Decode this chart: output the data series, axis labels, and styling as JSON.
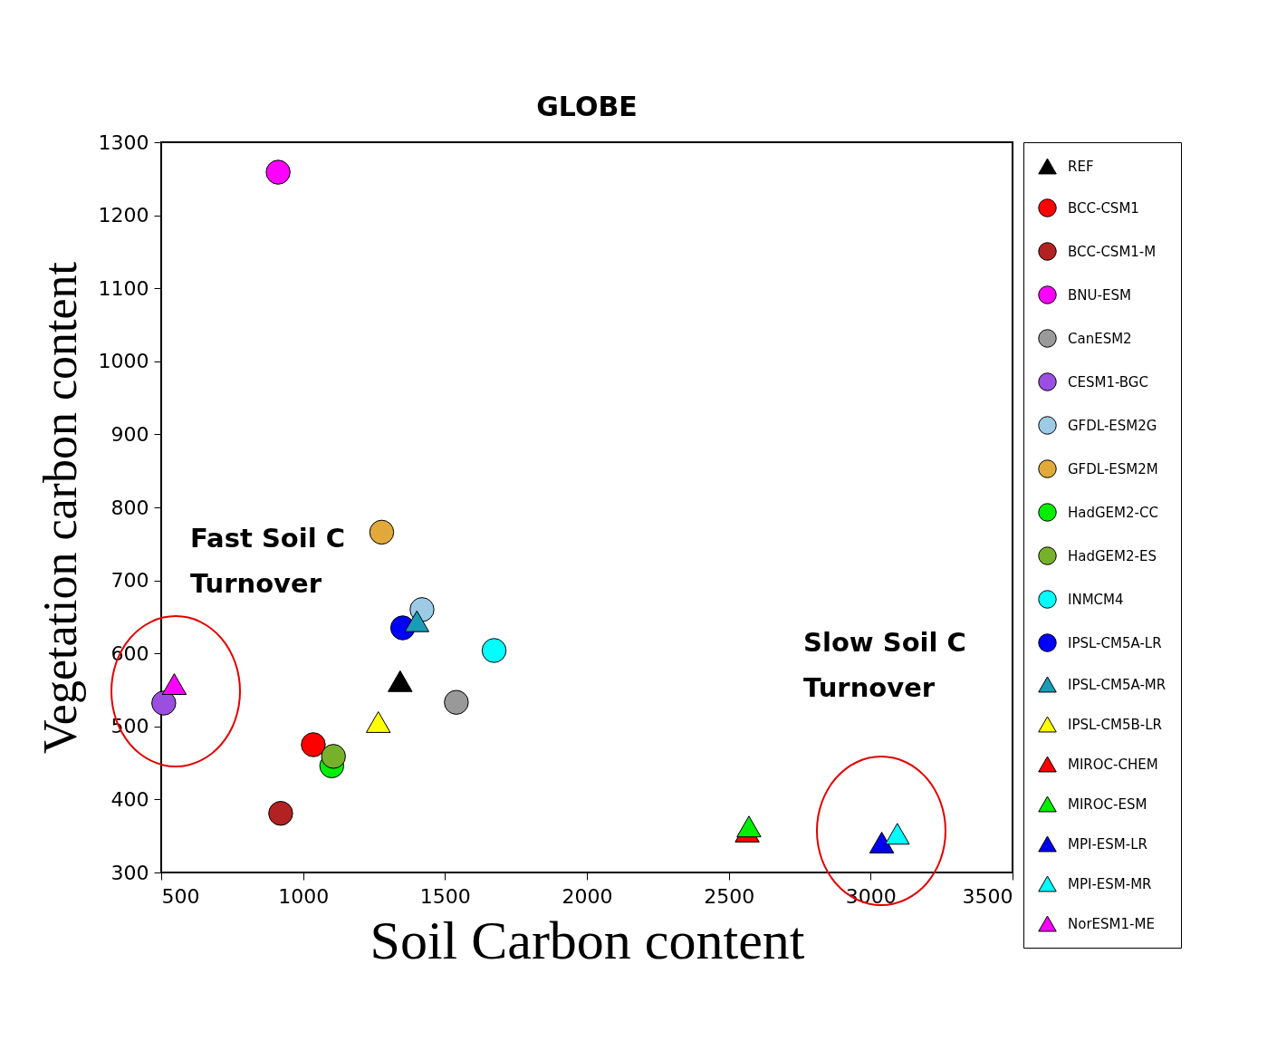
{
  "chart_data": {
    "type": "scatter",
    "title": "GLOBE",
    "xlabel": "Soil Carbon content",
    "ylabel": "Vegetation carbon content",
    "xlim": [
      500,
      3500
    ],
    "xticks": [
      500,
      1000,
      1500,
      2000,
      2500,
      3000,
      3500
    ],
    "ylim": [
      300,
      1300
    ],
    "yticks": [
      300,
      400,
      500,
      600,
      700,
      800,
      900,
      1000,
      1100,
      1200,
      1300
    ],
    "grid": false,
    "legend": "right",
    "annotations": [
      "Fast Soil C Turnover",
      "Slow Soil C Turnover"
    ],
    "series": [
      {
        "name": "REF",
        "color": "#000000",
        "marker": "triangle",
        "x": [
          1342
        ],
        "values": [
          562
        ]
      },
      {
        "name": "BCC-CSM1",
        "color": "#ff0000",
        "marker": "circle",
        "x": [
          1036
        ],
        "values": [
          475
        ]
      },
      {
        "name": "BCC-CSM1-M",
        "color": "#b22222",
        "marker": "circle",
        "x": [
          921
        ],
        "values": [
          381
        ]
      },
      {
        "name": "BNU-ESM",
        "color": "#ff00ff",
        "marker": "circle",
        "x": [
          912
        ],
        "values": [
          1259
        ]
      },
      {
        "name": "CanESM2",
        "color": "#999999",
        "marker": "circle",
        "x": [
          1540
        ],
        "values": [
          533
        ]
      },
      {
        "name": "CESM1-BGC",
        "color": "#9b4fe0",
        "marker": "circle",
        "x": [
          509
        ],
        "values": [
          532
        ]
      },
      {
        "name": "GFDL-ESM2G",
        "color": "#9dcbe6",
        "marker": "circle",
        "x": [
          1419
        ],
        "values": [
          660
        ]
      },
      {
        "name": "GFDL-ESM2M",
        "color": "#e0a93a",
        "marker": "circle",
        "x": [
          1277
        ],
        "values": [
          766
        ]
      },
      {
        "name": "HadGEM2-CC",
        "color": "#00ee00",
        "marker": "circle",
        "x": [
          1101
        ],
        "values": [
          446
        ]
      },
      {
        "name": "HadGEM2-ES",
        "color": "#77b02a",
        "marker": "circle",
        "x": [
          1107
        ],
        "values": [
          459
        ]
      },
      {
        "name": "INMCM4",
        "color": "#00ffff",
        "marker": "circle",
        "x": [
          1673
        ],
        "values": [
          604
        ]
      },
      {
        "name": "IPSL-CM5A-LR",
        "color": "#0000ff",
        "marker": "circle",
        "x": [
          1351
        ],
        "values": [
          635
        ]
      },
      {
        "name": "IPSL-CM5A-MR",
        "color": "#1a9cb8",
        "marker": "triangle",
        "x": [
          1401
        ],
        "values": [
          644
        ]
      },
      {
        "name": "IPSL-CM5B-LR",
        "color": "#ffff00",
        "marker": "triangle",
        "x": [
          1265
        ],
        "values": [
          506
        ]
      },
      {
        "name": "MIROC-CHEM",
        "color": "#ff0000",
        "marker": "triangle",
        "x": [
          2565
        ],
        "values": [
          356
        ]
      },
      {
        "name": "MIROC-ESM",
        "color": "#00ee00",
        "marker": "triangle",
        "x": [
          2571
        ],
        "values": [
          363
        ]
      },
      {
        "name": "MPI-ESM-LR",
        "color": "#0000ee",
        "marker": "triangle",
        "x": [
          3039
        ],
        "values": [
          341
        ]
      },
      {
        "name": "MPI-ESM-MR",
        "color": "#00ffff",
        "marker": "triangle",
        "x": [
          3094
        ],
        "values": [
          353
        ]
      },
      {
        "name": "NorESM1-ME",
        "color": "#ff00ff",
        "marker": "triangle",
        "x": [
          546
        ],
        "values": [
          558
        ]
      }
    ]
  }
}
